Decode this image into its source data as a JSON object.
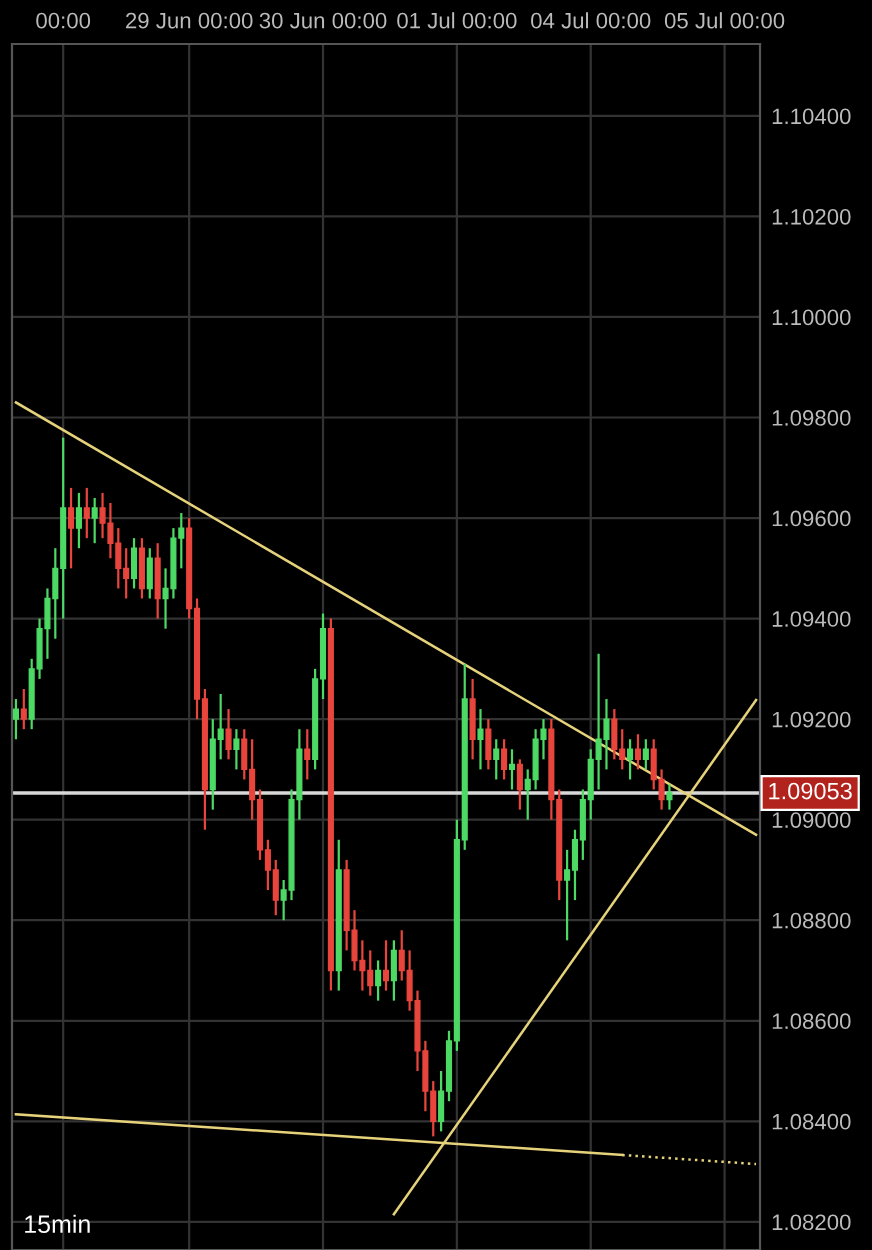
{
  "chart_data": {
    "type": "candlestick",
    "categories": [
      null,
      null,
      null,
      null,
      null,
      null,
      "00:00",
      null,
      null,
      null,
      null,
      null,
      null,
      null,
      null,
      null,
      null,
      null,
      null,
      null,
      null,
      null,
      "29 Jun 00:00",
      null,
      null,
      null,
      null,
      null,
      null,
      null,
      null,
      null,
      null,
      null,
      null,
      null,
      null,
      null,
      null,
      "30 Jun 00:00",
      null,
      null,
      null,
      null,
      null,
      null,
      null,
      null,
      null,
      null,
      null,
      null,
      null,
      null,
      null,
      null,
      "01 Jul 00:00",
      null,
      null,
      null,
      null,
      null,
      null,
      null,
      null,
      null,
      null,
      null,
      null,
      null,
      null,
      null,
      null,
      "04 Jul 00:00",
      null,
      null,
      null,
      null,
      null,
      null,
      null,
      null,
      null,
      null,
      null,
      null,
      null,
      null,
      null,
      null,
      "05 Jul 00:00",
      null,
      null,
      null,
      null
    ],
    "ohlc": [
      [
        1.092,
        1.0924,
        1.0916,
        1.0922
      ],
      [
        1.0922,
        1.0926,
        1.0918,
        1.092
      ],
      [
        1.092,
        1.0932,
        1.0918,
        1.093
      ],
      [
        1.093,
        1.094,
        1.0928,
        1.0938
      ],
      [
        1.0938,
        1.0946,
        1.0932,
        1.0944
      ],
      [
        1.0944,
        1.0954,
        1.0936,
        1.095
      ],
      [
        1.095,
        1.0976,
        1.094,
        1.0962
      ],
      [
        1.0962,
        1.0966,
        1.095,
        1.0958
      ],
      [
        1.0958,
        1.0965,
        1.0954,
        1.0962
      ],
      [
        1.0962,
        1.0966,
        1.0956,
        1.096
      ],
      [
        1.096,
        1.0964,
        1.0955,
        1.0962
      ],
      [
        1.0962,
        1.0965,
        1.0956,
        1.0959
      ],
      [
        1.0959,
        1.0963,
        1.0952,
        1.0955
      ],
      [
        1.0955,
        1.0958,
        1.0946,
        1.095
      ],
      [
        1.095,
        1.0954,
        1.0944,
        1.0948
      ],
      [
        1.0948,
        1.0956,
        1.0946,
        1.0954
      ],
      [
        1.0954,
        1.0956,
        1.0944,
        1.0946
      ],
      [
        1.0946,
        1.0954,
        1.0944,
        1.0952
      ],
      [
        1.0952,
        1.0955,
        1.094,
        1.0944
      ],
      [
        1.0944,
        1.095,
        1.0938,
        1.0946
      ],
      [
        1.0946,
        1.0958,
        1.0944,
        1.0956
      ],
      [
        1.0956,
        1.0961,
        1.095,
        1.0958
      ],
      [
        1.0958,
        1.096,
        1.094,
        1.0942
      ],
      [
        1.0942,
        1.0944,
        1.092,
        1.0924
      ],
      [
        1.0924,
        1.0926,
        1.0898,
        1.0906
      ],
      [
        1.0906,
        1.092,
        1.0902,
        1.0916
      ],
      [
        1.0916,
        1.0925,
        1.0912,
        1.0918
      ],
      [
        1.0918,
        1.0922,
        1.0912,
        1.0914
      ],
      [
        1.0914,
        1.0918,
        1.091,
        1.0916
      ],
      [
        1.0916,
        1.0918,
        1.0908,
        1.091
      ],
      [
        1.091,
        1.0916,
        1.09,
        1.0904
      ],
      [
        1.0904,
        1.0906,
        1.0892,
        1.0894
      ],
      [
        1.0894,
        1.0896,
        1.0886,
        1.089
      ],
      [
        1.089,
        1.0892,
        1.0881,
        1.0884
      ],
      [
        1.0884,
        1.0888,
        1.088,
        1.0886
      ],
      [
        1.0886,
        1.0906,
        1.0884,
        1.0904
      ],
      [
        1.0904,
        1.0918,
        1.09,
        1.0914
      ],
      [
        1.0914,
        1.0918,
        1.0908,
        1.0912
      ],
      [
        1.0912,
        1.093,
        1.091,
        1.0928
      ],
      [
        1.0928,
        1.0941,
        1.0924,
        1.0938
      ],
      [
        1.0938,
        1.094,
        1.0866,
        1.087
      ],
      [
        1.087,
        1.0896,
        1.0866,
        1.089
      ],
      [
        1.089,
        1.0892,
        1.0874,
        1.0878
      ],
      [
        1.0878,
        1.0882,
        1.087,
        1.0872
      ],
      [
        1.0872,
        1.0876,
        1.0866,
        1.087
      ],
      [
        1.087,
        1.0874,
        1.0865,
        1.0867
      ],
      [
        1.0867,
        1.0872,
        1.0864,
        1.087
      ],
      [
        1.087,
        1.0876,
        1.0866,
        1.0868
      ],
      [
        1.0868,
        1.0876,
        1.0864,
        1.0874
      ],
      [
        1.0874,
        1.0878,
        1.0868,
        1.087
      ],
      [
        1.087,
        1.0874,
        1.0862,
        1.0864
      ],
      [
        1.0864,
        1.0866,
        1.085,
        1.0854
      ],
      [
        1.0854,
        1.0856,
        1.0842,
        1.0846
      ],
      [
        1.0846,
        1.0848,
        1.0837,
        1.084
      ],
      [
        1.084,
        1.085,
        1.0838,
        1.0846
      ],
      [
        1.0846,
        1.0858,
        1.0844,
        1.0856
      ],
      [
        1.0856,
        1.09,
        1.0854,
        1.0896
      ],
      [
        1.0896,
        1.0931,
        1.0894,
        1.0924
      ],
      [
        1.0924,
        1.0928,
        1.0912,
        1.0916
      ],
      [
        1.0916,
        1.0922,
        1.091,
        1.0918
      ],
      [
        1.0918,
        1.092,
        1.091,
        1.0912
      ],
      [
        1.0912,
        1.0916,
        1.0908,
        1.0914
      ],
      [
        1.0914,
        1.0916,
        1.0908,
        1.091
      ],
      [
        1.091,
        1.0914,
        1.0906,
        1.0911
      ],
      [
        1.0911,
        1.0912,
        1.0902,
        1.0906
      ],
      [
        1.0906,
        1.091,
        1.09,
        1.0908
      ],
      [
        1.0908,
        1.0918,
        1.0906,
        1.0916
      ],
      [
        1.0916,
        1.092,
        1.0912,
        1.0918
      ],
      [
        1.0918,
        1.092,
        1.09,
        1.0904
      ],
      [
        1.0904,
        1.0906,
        1.0884,
        1.0888
      ],
      [
        1.0888,
        1.0894,
        1.0876,
        1.089
      ],
      [
        1.089,
        1.0898,
        1.0884,
        1.0896
      ],
      [
        1.0896,
        1.0906,
        1.0892,
        1.0904
      ],
      [
        1.0904,
        1.0914,
        1.09,
        1.0912
      ],
      [
        1.0912,
        1.0933,
        1.0906,
        1.0916
      ],
      [
        1.0916,
        1.0924,
        1.091,
        1.092
      ],
      [
        1.092,
        1.0922,
        1.0912,
        1.0914
      ],
      [
        1.0914,
        1.0918,
        1.091,
        1.0912
      ],
      [
        1.0912,
        1.0916,
        1.0908,
        1.0914
      ],
      [
        1.0914,
        1.0917,
        1.091,
        1.0912
      ],
      [
        1.0912,
        1.0916,
        1.091,
        1.0914
      ],
      [
        1.0914,
        1.0916,
        1.0906,
        1.0908
      ],
      [
        1.0908,
        1.091,
        1.0902,
        1.0904
      ],
      [
        1.0904,
        1.0907,
        1.0902,
        1.09053
      ],
      null,
      null,
      null,
      null,
      null,
      null,
      null,
      null,
      null,
      null,
      null
    ],
    "colors": [
      "#4cd964",
      "#e8453c",
      "#4cd964",
      "#4cd964",
      "#4cd964",
      "#4cd964",
      "#4cd964",
      "#e8453c",
      "#4cd964",
      "#e8453c",
      "#4cd964",
      "#e8453c",
      "#e8453c",
      "#e8453c",
      "#e8453c",
      "#4cd964",
      "#e8453c",
      "#4cd964",
      "#e8453c",
      "#4cd964",
      "#4cd964",
      "#4cd964",
      "#e8453c",
      "#e8453c",
      "#e8453c",
      "#4cd964",
      "#4cd964",
      "#e8453c",
      "#4cd964",
      "#e8453c",
      "#e8453c",
      "#e8453c",
      "#e8453c",
      "#e8453c",
      "#4cd964",
      "#4cd964",
      "#4cd964",
      "#e8453c",
      "#4cd964",
      "#4cd964",
      "#e8453c",
      "#4cd964",
      "#e8453c",
      "#e8453c",
      "#e8453c",
      "#e8453c",
      "#4cd964",
      "#e8453c",
      "#4cd964",
      "#e8453c",
      "#e8453c",
      "#e8453c",
      "#e8453c",
      "#e8453c",
      "#4cd964",
      "#4cd964",
      "#4cd964",
      "#4cd964",
      "#e8453c",
      "#4cd964",
      "#e8453c",
      "#4cd964",
      "#e8453c",
      "#4cd964",
      "#e8453c",
      "#4cd964",
      "#4cd964",
      "#4cd964",
      "#e8453c",
      "#e8453c",
      "#4cd964",
      "#4cd964",
      "#4cd964",
      "#4cd964",
      "#4cd964",
      "#4cd964",
      "#e8453c",
      "#e8453c",
      "#4cd964",
      "#e8453c",
      "#4cd964",
      "#e8453c",
      "#e8453c",
      "#4cd964",
      null,
      null,
      null,
      null,
      null,
      null,
      null,
      null,
      null,
      null,
      null
    ],
    "series": [
      {
        "type": "line",
        "color": "#e6d27a",
        "line_style": "solid",
        "values": [
          1.0983,
          null,
          null,
          null,
          null,
          null,
          null,
          null,
          null,
          null,
          null,
          null,
          null,
          null,
          null,
          null,
          null,
          null,
          null,
          null,
          null,
          null,
          null,
          null,
          null,
          null,
          null,
          null,
          null,
          null,
          null,
          null,
          null,
          null,
          null,
          null,
          null,
          null,
          null,
          null,
          null,
          null,
          null,
          null,
          null,
          null,
          null,
          null,
          null,
          null,
          null,
          null,
          null,
          null,
          null,
          null,
          null,
          null,
          null,
          null,
          null,
          null,
          null,
          null,
          null,
          null,
          null,
          null,
          null,
          null,
          null,
          null,
          null,
          null,
          null,
          null,
          null,
          null,
          null,
          null,
          null,
          null,
          null,
          null,
          null,
          null,
          null,
          null,
          null,
          null,
          null,
          null,
          null,
          null,
          1.0897
        ]
      },
      {
        "type": "line",
        "color": "#e6d27a",
        "line_style": "solid",
        "values": [
          null,
          null,
          null,
          null,
          null,
          null,
          null,
          null,
          null,
          null,
          null,
          null,
          null,
          null,
          null,
          null,
          null,
          null,
          null,
          null,
          null,
          null,
          null,
          null,
          null,
          null,
          null,
          null,
          null,
          null,
          null,
          null,
          null,
          null,
          null,
          null,
          null,
          null,
          null,
          null,
          null,
          null,
          null,
          null,
          null,
          null,
          null,
          null,
          1.08215,
          null,
          null,
          null,
          null,
          null,
          null,
          null,
          null,
          null,
          null,
          null,
          null,
          null,
          null,
          null,
          null,
          null,
          null,
          null,
          null,
          null,
          null,
          null,
          null,
          null,
          null,
          null,
          null,
          null,
          null,
          null,
          null,
          null,
          null,
          null,
          null,
          null,
          null,
          null,
          null,
          null,
          null,
          null,
          null,
          null,
          1.09238
        ]
      },
      {
        "type": "line",
        "color": "#e6d27a",
        "line_style": "solid",
        "values": [
          1.08414,
          null,
          null,
          null,
          null,
          null,
          null,
          null,
          null,
          null,
          null,
          null,
          null,
          null,
          null,
          null,
          null,
          null,
          null,
          null,
          null,
          null,
          null,
          null,
          null,
          null,
          null,
          null,
          null,
          null,
          null,
          null,
          null,
          null,
          null,
          null,
          null,
          null,
          null,
          null,
          null,
          null,
          null,
          null,
          null,
          null,
          null,
          null,
          null,
          null,
          null,
          null,
          null,
          null,
          null,
          null,
          null,
          null,
          null,
          null,
          null,
          null,
          null,
          null,
          null,
          null,
          null,
          null,
          null,
          null,
          null,
          null,
          null,
          null,
          null,
          null,
          null,
          1.08333,
          null,
          null,
          null,
          null,
          null,
          null,
          null,
          null,
          null,
          null,
          null,
          null,
          null,
          null,
          null,
          null,
          null
        ]
      },
      {
        "type": "line",
        "color": "#e6d27a",
        "line_style": "dotted",
        "values": [
          null,
          null,
          null,
          null,
          null,
          null,
          null,
          null,
          null,
          null,
          null,
          null,
          null,
          null,
          null,
          null,
          null,
          null,
          null,
          null,
          null,
          null,
          null,
          null,
          null,
          null,
          null,
          null,
          null,
          null,
          null,
          null,
          null,
          null,
          null,
          null,
          null,
          null,
          null,
          null,
          null,
          null,
          null,
          null,
          null,
          null,
          null,
          null,
          null,
          null,
          null,
          null,
          null,
          null,
          null,
          null,
          null,
          null,
          null,
          null,
          null,
          null,
          null,
          null,
          null,
          null,
          null,
          null,
          null,
          null,
          null,
          null,
          null,
          null,
          null,
          null,
          null,
          1.08333,
          null,
          null,
          null,
          null,
          null,
          null,
          null,
          null,
          null,
          null,
          null,
          null,
          null,
          null,
          null,
          null,
          1.08315
        ]
      }
    ],
    "ref_lines": [
      {
        "axis": "y",
        "value": 1.09053,
        "label": "1.09053",
        "color": "#d8d8d8"
      }
    ],
    "ylim": [
      1.08144,
      1.10543
    ],
    "yticks": [
      {
        "value": 1.082,
        "label": "1.08200"
      },
      {
        "value": 1.084,
        "label": "1.08400"
      },
      {
        "value": 1.086,
        "label": "1.08600"
      },
      {
        "value": 1.088,
        "label": "1.08800"
      },
      {
        "value": 1.09,
        "label": "1.09000"
      },
      {
        "value": 1.092,
        "label": "1.09200"
      },
      {
        "value": 1.094,
        "label": "1.09400"
      },
      {
        "value": 1.096,
        "label": "1.09600"
      },
      {
        "value": 1.098,
        "label": "1.09800"
      },
      {
        "value": 1.1,
        "label": "1.10000"
      },
      {
        "value": 1.102,
        "label": "1.10200"
      },
      {
        "value": 1.104,
        "label": "1.10400"
      }
    ],
    "grid": true,
    "annotations": [
      "15min"
    ]
  }
}
